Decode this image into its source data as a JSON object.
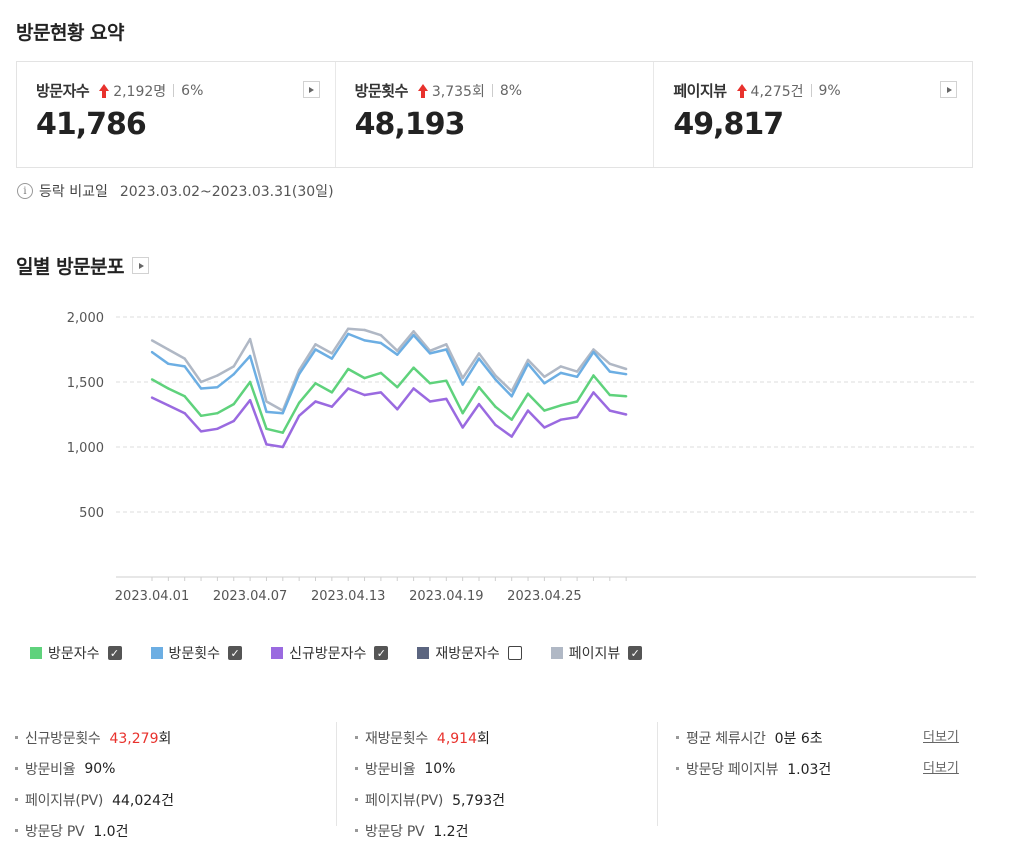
{
  "summary": {
    "title": "방문현황 요약",
    "cards": [
      {
        "label": "방문자수",
        "diff": "2,192명",
        "pct": "6%",
        "value": "41,786"
      },
      {
        "label": "방문횟수",
        "diff": "3,735회",
        "pct": "8%",
        "value": "48,193"
      },
      {
        "label": "페이지뷰",
        "diff": "4,275건",
        "pct": "9%",
        "value": "49,817"
      }
    ],
    "compare_label": "등락 비교일",
    "compare_range": "2023.03.02~2023.03.31(30일)"
  },
  "daily": {
    "title": "일별 방문분포"
  },
  "chart_data": {
    "type": "line",
    "ylim": [
      0,
      2000
    ],
    "yticks": [
      "2,000",
      "1,500",
      "1,000",
      "500"
    ],
    "ytick_values": [
      2000,
      1500,
      1000,
      500
    ],
    "x": [
      "2023.04.01",
      "2023.04.02",
      "2023.04.03",
      "2023.04.04",
      "2023.04.05",
      "2023.04.06",
      "2023.04.07",
      "2023.04.08",
      "2023.04.09",
      "2023.04.10",
      "2023.04.11",
      "2023.04.12",
      "2023.04.13",
      "2023.04.14",
      "2023.04.15",
      "2023.04.16",
      "2023.04.17",
      "2023.04.18",
      "2023.04.19",
      "2023.04.20",
      "2023.04.21",
      "2023.04.22",
      "2023.04.23",
      "2023.04.24",
      "2023.04.25",
      "2023.04.26",
      "2023.04.27",
      "2023.04.28",
      "2023.04.29",
      "2023.04.30"
    ],
    "xtick_labels": [
      "2023.04.01",
      "2023.04.07",
      "2023.04.13",
      "2023.04.19",
      "2023.04.25"
    ],
    "grid": true,
    "series": [
      {
        "name": "페이지뷰",
        "color": "#b0b8c5",
        "values": [
          1820,
          1750,
          1680,
          1500,
          1550,
          1620,
          1830,
          1350,
          1280,
          1590,
          1790,
          1720,
          1910,
          1900,
          1860,
          1740,
          1890,
          1740,
          1790,
          1530,
          1720,
          1550,
          1430,
          1670,
          1540,
          1620,
          1580,
          1750,
          1640,
          1600
        ]
      },
      {
        "name": "방문횟수",
        "color": "#6caee3",
        "values": [
          1730,
          1640,
          1620,
          1450,
          1460,
          1560,
          1700,
          1270,
          1260,
          1560,
          1750,
          1680,
          1870,
          1820,
          1800,
          1710,
          1860,
          1720,
          1750,
          1480,
          1680,
          1520,
          1390,
          1640,
          1490,
          1570,
          1540,
          1730,
          1580,
          1560
        ]
      },
      {
        "name": "방문자수",
        "color": "#5fd27c",
        "values": [
          1520,
          1450,
          1390,
          1240,
          1260,
          1330,
          1500,
          1140,
          1110,
          1340,
          1490,
          1420,
          1600,
          1530,
          1570,
          1460,
          1610,
          1490,
          1510,
          1260,
          1460,
          1310,
          1210,
          1410,
          1280,
          1320,
          1350,
          1550,
          1400,
          1390
        ]
      },
      {
        "name": "신규방문자수",
        "color": "#9a6ae0",
        "values": [
          1380,
          1320,
          1260,
          1120,
          1140,
          1200,
          1360,
          1020,
          1000,
          1240,
          1350,
          1310,
          1450,
          1400,
          1420,
          1290,
          1450,
          1350,
          1370,
          1150,
          1330,
          1170,
          1080,
          1280,
          1150,
          1210,
          1230,
          1420,
          1280,
          1250
        ]
      }
    ]
  },
  "legend": [
    {
      "label": "방문자수",
      "color": "#5fd27c",
      "checked": true
    },
    {
      "label": "방문횟수",
      "color": "#6caee3",
      "checked": true
    },
    {
      "label": "신규방문자수",
      "color": "#9a6ae0",
      "checked": true
    },
    {
      "label": "재방문자수",
      "color": "#5b6580",
      "checked": false
    },
    {
      "label": "페이지뷰",
      "color": "#b0b8c5",
      "checked": true
    }
  ],
  "details": {
    "col1": [
      {
        "label": "신규방문횟수",
        "value_red": "43,279",
        "value_suffix": "회"
      },
      {
        "label": "방문비율",
        "value": "90%"
      },
      {
        "label": "페이지뷰(PV)",
        "value": "44,024건"
      },
      {
        "label": "방문당 PV",
        "value": "1.0건"
      }
    ],
    "col2": [
      {
        "label": "재방문횟수",
        "value_red": "4,914",
        "value_suffix": "회"
      },
      {
        "label": "방문비율",
        "value": "10%"
      },
      {
        "label": "페이지뷰(PV)",
        "value": "5,793건"
      },
      {
        "label": "방문당 PV",
        "value": "1.2건"
      }
    ],
    "col3": [
      {
        "label": "평균 체류시간",
        "value": "0분 6초",
        "more": "더보기"
      },
      {
        "label": "방문당 페이지뷰",
        "value": "1.03건",
        "more": "더보기"
      }
    ]
  }
}
